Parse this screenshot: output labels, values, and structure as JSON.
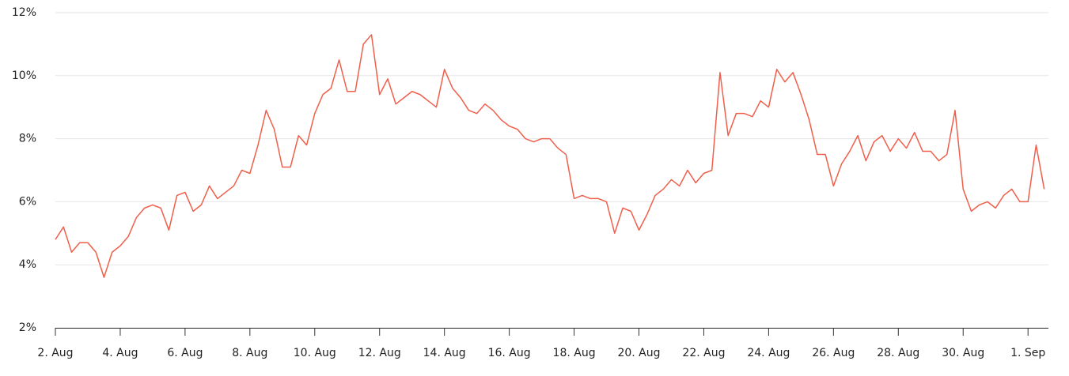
{
  "chart_data": {
    "type": "line",
    "x": [
      0,
      0.25,
      0.5,
      0.75,
      1,
      1.25,
      1.5,
      1.75,
      2,
      2.25,
      2.5,
      2.75,
      3,
      3.25,
      3.5,
      3.75,
      4,
      4.25,
      4.5,
      4.75,
      5,
      5.25,
      5.5,
      5.75,
      6,
      6.25,
      6.5,
      6.75,
      7,
      7.25,
      7.5,
      7.75,
      8,
      8.25,
      8.5,
      8.75,
      9,
      9.25,
      9.5,
      9.75,
      10,
      10.25,
      10.5,
      10.75,
      11,
      11.25,
      11.5,
      11.75,
      12,
      12.25,
      12.5,
      12.75,
      13,
      13.25,
      13.5,
      13.75,
      14,
      14.25,
      14.5,
      14.75,
      15,
      15.25,
      15.5,
      15.75,
      16,
      16.25,
      16.5,
      16.75,
      17,
      17.25,
      17.5,
      17.75,
      18,
      18.25,
      18.5,
      18.75,
      19,
      19.25,
      19.5,
      19.75,
      20,
      20.25,
      20.5,
      20.75,
      21,
      21.25,
      21.5,
      21.75,
      22,
      22.25,
      22.5,
      22.75,
      23,
      23.25,
      23.5,
      23.75,
      24,
      24.25,
      24.5,
      24.75,
      25,
      25.25,
      25.5,
      25.75,
      26,
      26.25,
      26.5,
      26.75,
      27,
      27.25,
      27.5,
      27.75,
      28,
      28.25,
      28.5,
      28.75,
      29,
      29.25,
      29.5,
      29.75,
      30,
      30.25,
      30.5
    ],
    "series": [
      {
        "color": "#ef5f4b",
        "values": [
          4.8,
          5.2,
          4.4,
          4.7,
          4.7,
          4.4,
          3.6,
          4.4,
          4.6,
          4.9,
          5.5,
          5.8,
          5.9,
          5.8,
          5.1,
          6.2,
          6.3,
          5.7,
          5.9,
          6.5,
          6.1,
          6.3,
          6.5,
          7.0,
          6.9,
          7.8,
          8.9,
          8.3,
          7.1,
          7.1,
          8.1,
          7.8,
          8.8,
          9.4,
          9.6,
          10.5,
          9.5,
          9.5,
          11.0,
          11.3,
          9.4,
          9.9,
          9.1,
          9.3,
          9.5,
          9.4,
          9.2,
          9.0,
          10.2,
          9.6,
          9.3,
          8.9,
          8.8,
          9.1,
          8.9,
          8.6,
          8.4,
          8.3,
          8.0,
          7.9,
          8.0,
          8.0,
          7.7,
          7.5,
          6.1,
          6.2,
          6.1,
          6.1,
          6.0,
          5.0,
          5.8,
          5.7,
          5.1,
          5.6,
          6.2,
          6.4,
          6.7,
          6.5,
          7.0,
          6.6,
          6.9,
          7.0,
          10.1,
          8.1,
          8.8,
          8.8,
          8.7,
          9.2,
          9.0,
          10.2,
          9.8,
          10.1,
          9.4,
          8.6,
          7.5,
          7.5,
          6.5,
          7.2,
          7.6,
          8.1,
          7.3,
          7.9,
          8.1,
          7.6,
          8.0,
          7.7,
          8.2,
          7.6,
          7.6,
          7.3,
          7.5,
          8.9,
          6.4,
          5.7,
          5.9,
          6.0,
          5.8,
          6.2,
          6.4,
          6.0,
          6.0,
          7.8,
          6.4
        ]
      }
    ],
    "xlim": [
      0,
      30.63
    ],
    "xticks": [
      {
        "value": 0,
        "label": "2. Aug"
      },
      {
        "value": 2,
        "label": "4. Aug"
      },
      {
        "value": 4,
        "label": "6. Aug"
      },
      {
        "value": 6,
        "label": "8. Aug"
      },
      {
        "value": 8,
        "label": "10. Aug"
      },
      {
        "value": 10,
        "label": "12. Aug"
      },
      {
        "value": 12,
        "label": "14. Aug"
      },
      {
        "value": 14,
        "label": "16. Aug"
      },
      {
        "value": 16,
        "label": "18. Aug"
      },
      {
        "value": 18,
        "label": "20. Aug"
      },
      {
        "value": 20,
        "label": "22. Aug"
      },
      {
        "value": 22,
        "label": "24. Aug"
      },
      {
        "value": 24,
        "label": "26. Aug"
      },
      {
        "value": 26,
        "label": "28. Aug"
      },
      {
        "value": 28,
        "label": "30. Aug"
      },
      {
        "value": 30,
        "label": "1. Sep"
      }
    ],
    "ylim": [
      2,
      12
    ],
    "yticks": [
      {
        "value": 2,
        "label": "2%"
      },
      {
        "value": 4,
        "label": "4%"
      },
      {
        "value": 6,
        "label": "6%"
      },
      {
        "value": 8,
        "label": "8%"
      },
      {
        "value": 10,
        "label": "10%"
      },
      {
        "value": 12,
        "label": "12%"
      }
    ],
    "grid": true
  }
}
